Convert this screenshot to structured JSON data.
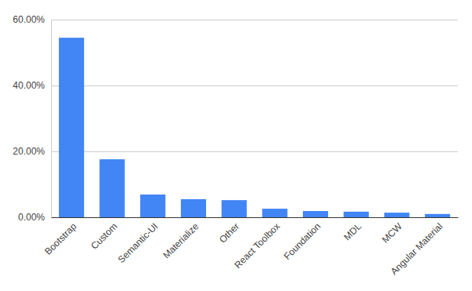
{
  "chart_data": {
    "type": "bar",
    "categories": [
      "Bootstrap",
      "Custom",
      "Semantic-UI",
      "Materialize",
      "Other",
      "React Toolbox",
      "Foundation",
      "MDL",
      "MCW",
      "Angular Material"
    ],
    "values": [
      54.5,
      17.6,
      6.9,
      5.5,
      5.2,
      2.6,
      1.9,
      1.7,
      1.4,
      1.0
    ],
    "color": "#4285f4",
    "ylim": [
      0,
      60
    ],
    "yticks": [
      {
        "value": 0,
        "label": "0.00%"
      },
      {
        "value": 20,
        "label": "20.00%"
      },
      {
        "value": 40,
        "label": "40.00%"
      },
      {
        "value": 60,
        "label": "60.00%"
      }
    ],
    "grid": true
  }
}
